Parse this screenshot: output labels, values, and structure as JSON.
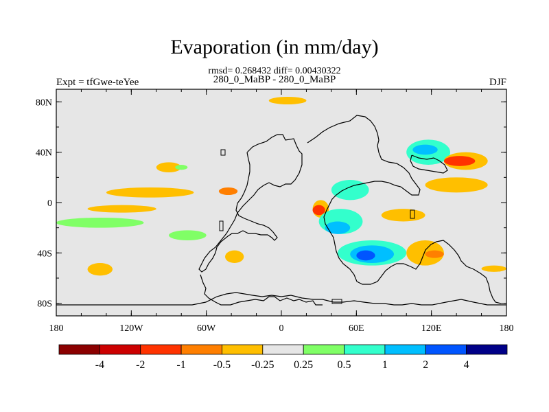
{
  "title": "Evaporation (in mm/day)",
  "stats_line": "rmsd= 0.268432 diff= 0.00430322",
  "subtitle": "280_0_MaBP - 280_0_MaBP",
  "left_label": "Expt = tfGwe-teYee",
  "right_label": "DJF",
  "map": {
    "lon_range": [
      -180,
      180
    ],
    "lat_range": [
      -90,
      90
    ],
    "background_color": "#e6e6e6",
    "lon_ticks": [
      {
        "value": -180,
        "label": "180"
      },
      {
        "value": -120,
        "label": "120W"
      },
      {
        "value": -60,
        "label": "60W"
      },
      {
        "value": 0,
        "label": "0"
      },
      {
        "value": 60,
        "label": "60E"
      },
      {
        "value": 120,
        "label": "120E"
      },
      {
        "value": 180,
        "label": "180"
      }
    ],
    "lat_ticks": [
      {
        "value": 80,
        "label": "80N"
      },
      {
        "value": 40,
        "label": "40N"
      },
      {
        "value": 0,
        "label": "0"
      },
      {
        "value": -40,
        "label": "40S"
      },
      {
        "value": -80,
        "label": "80S"
      }
    ]
  },
  "colorbar": {
    "colors": [
      "#8b0000",
      "#cc0000",
      "#ff3300",
      "#ff7f00",
      "#ffbf00",
      "#e6e6e6",
      "#80ff66",
      "#33ffcc",
      "#00bfff",
      "#0055ff",
      "#000088"
    ],
    "labels": [
      "-4",
      "-2",
      "-1",
      "-0.5",
      "-0.25",
      "0.25",
      "0.5",
      "1",
      "2",
      "4"
    ]
  },
  "chart_data": {
    "type": "heatmap",
    "title": "Evaporation (in mm/day)",
    "subtitle": "280_0_MaBP - 280_0_MaBP",
    "units": "mm/day",
    "season": "DJF",
    "xlim": [
      -180,
      180
    ],
    "ylim": [
      -90,
      90
    ],
    "levels": [
      -4,
      -2,
      -1,
      -0.5,
      -0.25,
      0.25,
      0.5,
      1,
      2,
      4
    ],
    "anomaly_regions": [
      {
        "lon": [
          -10,
          20
        ],
        "lat": [
          78,
          84
        ],
        "level": "-0.25"
      },
      {
        "lon": [
          25,
          38
        ],
        "lat": [
          -12,
          2
        ],
        "level": "-0.25"
      },
      {
        "lon": [
          -100,
          -80
        ],
        "lat": [
          24,
          32
        ],
        "level": "-0.25"
      },
      {
        "lon": [
          -85,
          -75
        ],
        "lat": [
          26,
          30
        ],
        "level": "0.25"
      },
      {
        "lon": [
          -140,
          -70
        ],
        "lat": [
          4,
          12
        ],
        "level": "-0.25"
      },
      {
        "lon": [
          -50,
          -35
        ],
        "lat": [
          6,
          12
        ],
        "level": "-0.5"
      },
      {
        "lon": [
          -155,
          -100
        ],
        "lat": [
          -8,
          -2
        ],
        "level": "-0.25"
      },
      {
        "lon": [
          -180,
          -110
        ],
        "lat": [
          -12,
          -20
        ],
        "level": "0.25"
      },
      {
        "lon": [
          -90,
          -60
        ],
        "lat": [
          -22,
          -30
        ],
        "level": "0.25"
      },
      {
        "lon": [
          -155,
          -135
        ],
        "lat": [
          -48,
          -58
        ],
        "level": "-0.25"
      },
      {
        "lon": [
          -45,
          -30
        ],
        "lat": [
          -38,
          -48
        ],
        "level": "-0.25"
      },
      {
        "lon": [
          40,
          70
        ],
        "lat": [
          2,
          18
        ],
        "level": "0.5"
      },
      {
        "lon": [
          30,
          65
        ],
        "lat": [
          -5,
          -25
        ],
        "level": "0.5"
      },
      {
        "lon": [
          35,
          55
        ],
        "lat": [
          -15,
          -25
        ],
        "level": "1"
      },
      {
        "lon": [
          25,
          35
        ],
        "lat": [
          -2,
          -10
        ],
        "level": "-1"
      },
      {
        "lon": [
          45,
          100
        ],
        "lat": [
          -30,
          -50
        ],
        "level": "0.5"
      },
      {
        "lon": [
          55,
          90
        ],
        "lat": [
          -34,
          -48
        ],
        "level": "1"
      },
      {
        "lon": [
          60,
          75
        ],
        "lat": [
          -38,
          -46
        ],
        "level": "2"
      },
      {
        "lon": [
          100,
          130
        ],
        "lat": [
          -30,
          -50
        ],
        "level": "-0.25"
      },
      {
        "lon": [
          115,
          130
        ],
        "lat": [
          -38,
          -44
        ],
        "level": "-0.5"
      },
      {
        "lon": [
          100,
          135
        ],
        "lat": [
          30,
          50
        ],
        "level": "0.5"
      },
      {
        "lon": [
          105,
          125
        ],
        "lat": [
          38,
          46
        ],
        "level": "1"
      },
      {
        "lon": [
          130,
          165
        ],
        "lat": [
          26,
          40
        ],
        "level": "-0.25"
      },
      {
        "lon": [
          130,
          155
        ],
        "lat": [
          29,
          37
        ],
        "level": "-1"
      },
      {
        "lon": [
          115,
          165
        ],
        "lat": [
          8,
          20
        ],
        "level": "-0.25"
      },
      {
        "lon": [
          80,
          115
        ],
        "lat": [
          -5,
          -15
        ],
        "level": "-0.25"
      },
      {
        "lon": [
          160,
          180
        ],
        "lat": [
          -50,
          -55
        ],
        "level": "-0.25"
      }
    ]
  }
}
